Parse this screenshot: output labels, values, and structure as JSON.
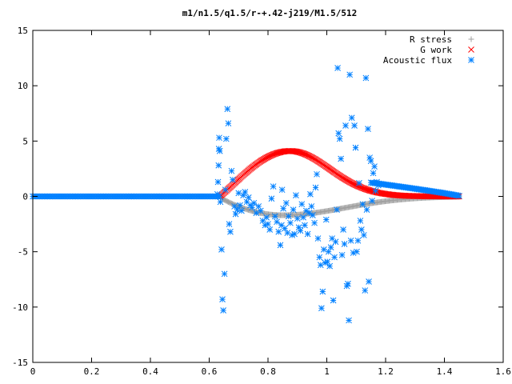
{
  "chart_data": {
    "type": "scatter",
    "title": "m1/n1.5/q1.5/r-+.42-j219/M1.5/512",
    "xlabel": "",
    "ylabel": "",
    "xlim": [
      0,
      1.6
    ],
    "ylim": [
      -15,
      15
    ],
    "x_ticks": [
      "0",
      "0.2",
      "0.4",
      "0.6",
      "0.8",
      "1",
      "1.2",
      "1.4",
      "1.6"
    ],
    "y_ticks": [
      "15",
      "10",
      "5",
      "0",
      "-5",
      "-10",
      "-15"
    ],
    "legend_position": "top-right",
    "grid": false,
    "series": [
      {
        "name": "R stress",
        "marker": "plus",
        "color": "#a0a0a0",
        "generator": {
          "kind": "r_stress",
          "x0": 0.635,
          "x1": 1.45,
          "peak_x": 0.85,
          "peak_y": -1.7,
          "n": 240
        }
      },
      {
        "name": "G work",
        "marker": "cross",
        "color": "#ff0000",
        "generator": {
          "kind": "g_work",
          "x0": 0.635,
          "x1": 1.45,
          "peak_x": 0.875,
          "peak_y": 4.1,
          "n": 240
        }
      },
      {
        "name": "Acoustic flux",
        "marker": "star",
        "color": "#0080ff",
        "generator": {
          "kind": "acoustic_flux",
          "flat_x0": 0.0,
          "flat_x1": 0.635,
          "tail_x0": 1.15,
          "tail_x1": 1.45,
          "tail_peak": 1.2
        },
        "points": [
          [
            0.628,
            0.2
          ],
          [
            0.63,
            1.3
          ],
          [
            0.632,
            2.8
          ],
          [
            0.633,
            4.3
          ],
          [
            0.634,
            5.3
          ],
          [
            0.636,
            4.1
          ],
          [
            0.638,
            -0.5
          ],
          [
            0.642,
            -4.8
          ],
          [
            0.645,
            -9.3
          ],
          [
            0.648,
            -10.3
          ],
          [
            0.652,
            -7.0
          ],
          [
            0.655,
            0.6
          ],
          [
            0.658,
            5.2
          ],
          [
            0.662,
            7.9
          ],
          [
            0.665,
            6.6
          ],
          [
            0.668,
            -2.5
          ],
          [
            0.672,
            -3.2
          ],
          [
            0.676,
            2.3
          ],
          [
            0.68,
            1.5
          ],
          [
            0.686,
            -0.9
          ],
          [
            0.69,
            -1.6
          ],
          [
            0.695,
            -1.2
          ],
          [
            0.7,
            0.3
          ],
          [
            0.705,
            -0.8
          ],
          [
            0.71,
            -1.3
          ],
          [
            0.716,
            0.1
          ],
          [
            0.722,
            0.4
          ],
          [
            0.728,
            -0.5
          ],
          [
            0.734,
            -0.1
          ],
          [
            0.74,
            -0.8
          ],
          [
            0.746,
            -1.0
          ],
          [
            0.752,
            -0.6
          ],
          [
            0.76,
            -1.5
          ],
          [
            0.768,
            -0.9
          ],
          [
            0.775,
            -1.3
          ],
          [
            0.782,
            -2.2
          ],
          [
            0.79,
            -2.6
          ],
          [
            0.795,
            -1.9
          ],
          [
            0.8,
            -2.5
          ],
          [
            0.806,
            -3.0
          ],
          [
            0.812,
            -0.2
          ],
          [
            0.818,
            0.9
          ],
          [
            0.824,
            -1.8
          ],
          [
            0.83,
            -2.3
          ],
          [
            0.836,
            -3.2
          ],
          [
            0.842,
            -4.4
          ],
          [
            0.846,
            -2.6
          ],
          [
            0.848,
            0.6
          ],
          [
            0.852,
            -1.1
          ],
          [
            0.857,
            -2.9
          ],
          [
            0.862,
            -0.6
          ],
          [
            0.866,
            -3.3
          ],
          [
            0.87,
            -1.8
          ],
          [
            0.876,
            -2.4
          ],
          [
            0.882,
            -3.5
          ],
          [
            0.886,
            -1.2
          ],
          [
            0.89,
            -3.4
          ],
          [
            0.895,
            0.1
          ],
          [
            0.9,
            -2.0
          ],
          [
            0.905,
            -2.8
          ],
          [
            0.91,
            -3.1
          ],
          [
            0.915,
            -0.7
          ],
          [
            0.92,
            -1.9
          ],
          [
            0.925,
            -2.6
          ],
          [
            0.93,
            -1.3
          ],
          [
            0.935,
            -3.4
          ],
          [
            0.94,
            -1.5
          ],
          [
            0.944,
            0.2
          ],
          [
            0.948,
            -0.9
          ],
          [
            0.952,
            -1.7
          ],
          [
            0.958,
            -2.4
          ],
          [
            0.962,
            0.8
          ],
          [
            0.966,
            2.0
          ],
          [
            0.97,
            -3.8
          ],
          [
            0.975,
            -5.5
          ],
          [
            0.979,
            -6.2
          ],
          [
            0.982,
            -10.1
          ],
          [
            0.986,
            -8.6
          ],
          [
            0.99,
            -4.8
          ],
          [
            0.994,
            -6.0
          ],
          [
            0.998,
            -2.1
          ],
          [
            1.002,
            -5.9
          ],
          [
            1.006,
            -5.0
          ],
          [
            1.01,
            -6.3
          ],
          [
            1.014,
            -4.6
          ],
          [
            1.018,
            -3.8
          ],
          [
            1.022,
            -9.4
          ],
          [
            1.026,
            -5.5
          ],
          [
            1.03,
            -4.1
          ],
          [
            1.034,
            -1.2
          ],
          [
            1.037,
            11.6
          ],
          [
            1.04,
            5.7
          ],
          [
            1.044,
            5.2
          ],
          [
            1.048,
            3.4
          ],
          [
            1.052,
            -5.3
          ],
          [
            1.056,
            -3.0
          ],
          [
            1.06,
            -4.3
          ],
          [
            1.064,
            6.4
          ],
          [
            1.068,
            -8.1
          ],
          [
            1.072,
            -7.9
          ],
          [
            1.075,
            -11.2
          ],
          [
            1.078,
            11.0
          ],
          [
            1.082,
            -4.0
          ],
          [
            1.085,
            7.1
          ],
          [
            1.09,
            -5.1
          ],
          [
            1.094,
            6.4
          ],
          [
            1.098,
            4.4
          ],
          [
            1.102,
            -5.0
          ],
          [
            1.106,
            -4.0
          ],
          [
            1.11,
            1.2
          ],
          [
            1.114,
            -2.2
          ],
          [
            1.118,
            -3.0
          ],
          [
            1.122,
            -0.7
          ],
          [
            1.126,
            -3.5
          ],
          [
            1.13,
            -8.5
          ],
          [
            1.133,
            10.7
          ],
          [
            1.136,
            -1.2
          ],
          [
            1.14,
            6.1
          ],
          [
            1.143,
            -7.7
          ],
          [
            1.146,
            3.5
          ],
          [
            1.15,
            3.2
          ],
          [
            1.154,
            -0.4
          ],
          [
            1.158,
            2.1
          ],
          [
            1.162,
            2.7
          ],
          [
            1.166,
            0.5
          ],
          [
            1.17,
            1.3
          ],
          [
            1.175,
            1.0
          ]
        ]
      }
    ]
  }
}
